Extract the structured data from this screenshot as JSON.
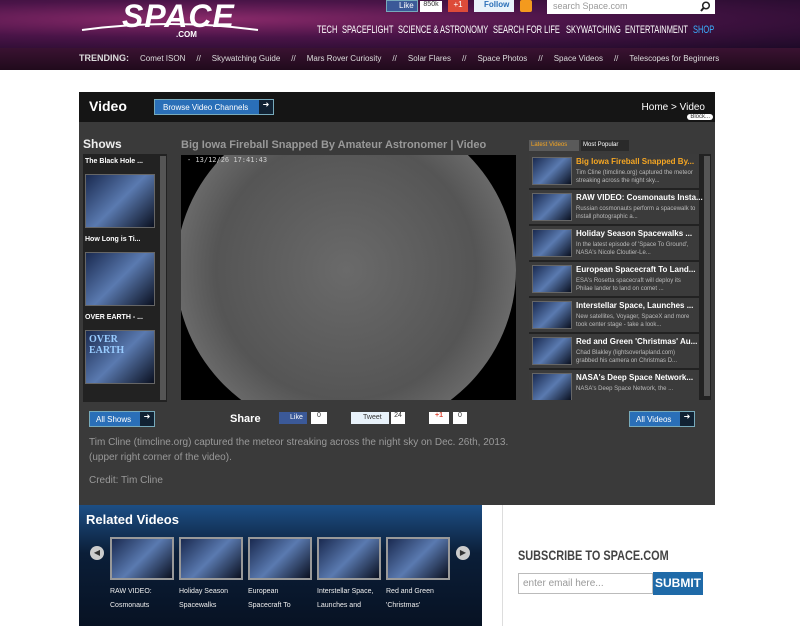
{
  "header": {
    "logo": "SPACE",
    "logo_sub": ".COM",
    "social": {
      "like": "Like",
      "like_count": "850k",
      "plus": "+1",
      "follow": "Follow"
    },
    "search_placeholder": "search Space.com",
    "nav": [
      "TECH",
      "SPACEFLIGHT",
      "SCIENCE & ASTRONOMY",
      "SEARCH FOR LIFE",
      "SKYWATCHING",
      "ENTERTAINMENT",
      "SHOP"
    ],
    "trending_label": "TRENDING:",
    "separator": "//",
    "trending": [
      "Comet ISON",
      "Skywatching Guide",
      "Mars Rover Curiosity",
      "Solar Flares",
      "Space Photos",
      "Space Videos",
      "Telescopes for Beginners"
    ]
  },
  "video_section": {
    "heading": "Video",
    "browse_button": "Browse Video Channels",
    "breadcrumb": "Home > Video",
    "block_tag": "Block...",
    "shows": {
      "title": "Shows",
      "items": [
        "The Black Hole ...",
        "How Long is Ti...",
        "OVER EARTH - ..."
      ],
      "thumb_text": "OVER EARTH"
    },
    "video": {
      "title": "Big Iowa Fireball Snapped By Amateur Astronomer | Video",
      "timestamp": "- 13/12/26 17:41:43"
    },
    "tabs": [
      "Latest Videos",
      "Most Popular"
    ],
    "list": [
      {
        "title": "Big Iowa Fireball Snapped By...",
        "description": "Tim Cline (timcline.org) captured the meteor streaking across the night sky..."
      },
      {
        "title": "RAW VIDEO: Cosmonauts Insta...",
        "description": "Russian cosmonauts perform a spacewalk to install photographic a..."
      },
      {
        "title": "Holiday Season Spacewalks ...",
        "description": "In the latest episode of 'Space To Ground', NASA's Nicole Cloutier-Le..."
      },
      {
        "title": "European Spacecraft To Land...",
        "description": "ESA's Rosetta spacecraft will deploy its Philae lander to land on comet ..."
      },
      {
        "title": "Interstellar Space, Launches ...",
        "description": "New satellites, Voyager, SpaceX and more took center stage - take a look..."
      },
      {
        "title": "Red and Green 'Christmas' Au...",
        "description": "Chad Blakley (lightsoverlapland.com) grabbed his camera on Christmas D..."
      },
      {
        "title": "NASA's Deep Space Network...",
        "description": "NASA's Deep Space Network, the ..."
      }
    ],
    "all_shows": "All Shows",
    "share": "Share",
    "like": "Like",
    "like_count": "0",
    "tweet": "Tweet",
    "tweet_count": "24",
    "plus": "+1",
    "plus_count": "0",
    "all_videos": "All Videos",
    "caption": "Tim Cline (timcline.org) captured the meteor streaking across the night sky on Dec. 26th, 2013. (upper right corner of the video).",
    "credit": "Credit: Tim Cline"
  },
  "related": {
    "title": "Related Videos",
    "items": [
      [
        "RAW VIDEO:",
        "Cosmonauts"
      ],
      [
        "Holiday Season",
        "Spacewalks"
      ],
      [
        "European",
        "Spacecraft To"
      ],
      [
        "Interstellar Space,",
        "Launches and"
      ],
      [
        "Red and Green",
        "'Christmas'"
      ]
    ]
  },
  "subscribe": {
    "title": "SUBSCRIBE TO SPACE.COM",
    "placeholder": "enter email here...",
    "button": "SUBMIT"
  }
}
